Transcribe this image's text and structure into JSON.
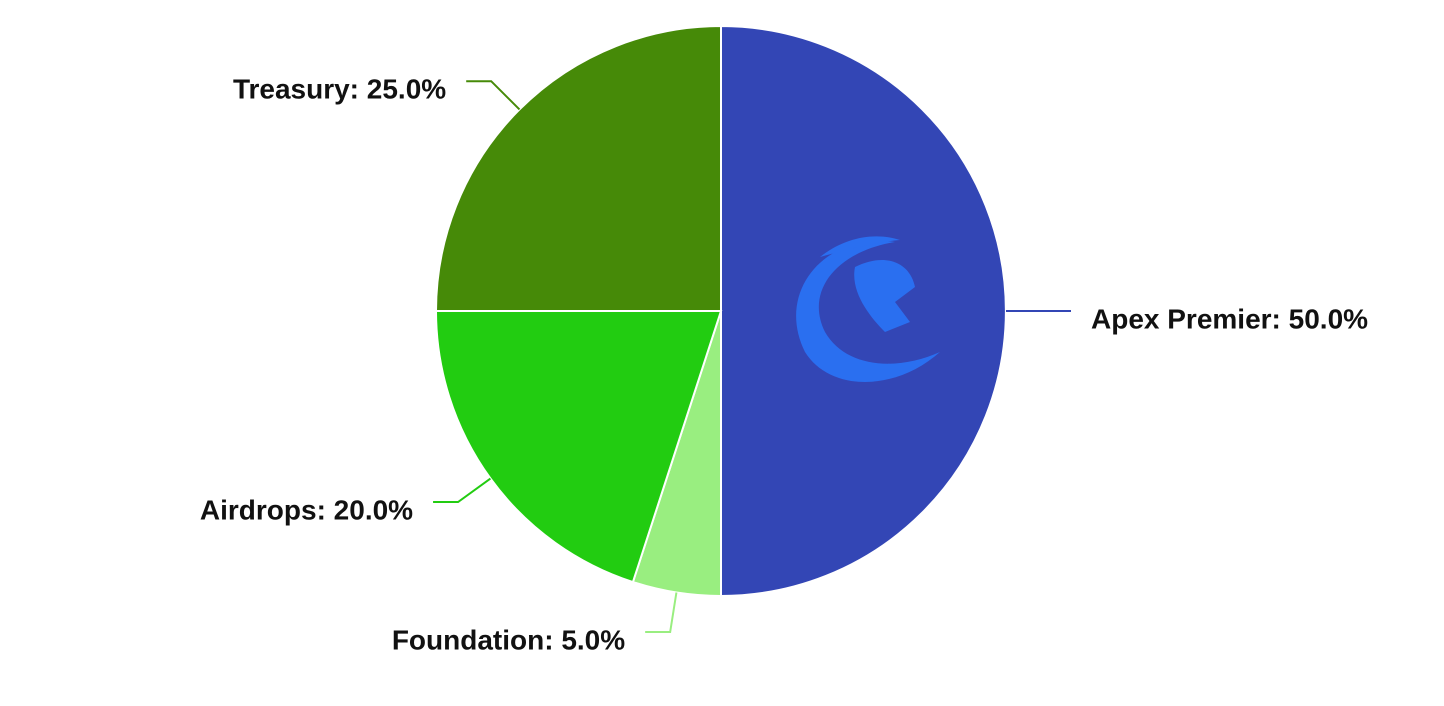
{
  "chart_data": {
    "type": "pie",
    "values": [
      50,
      5,
      20,
      25
    ],
    "value_labels": [
      "Apex Premier: 50.0%",
      "Foundation: 5.0%",
      "Airdrops: 20.0%",
      "Treasury: 25.0%"
    ],
    "colors": [
      "#3346b5",
      "#99ee80",
      "#22cc11",
      "#468a08"
    ]
  }
}
